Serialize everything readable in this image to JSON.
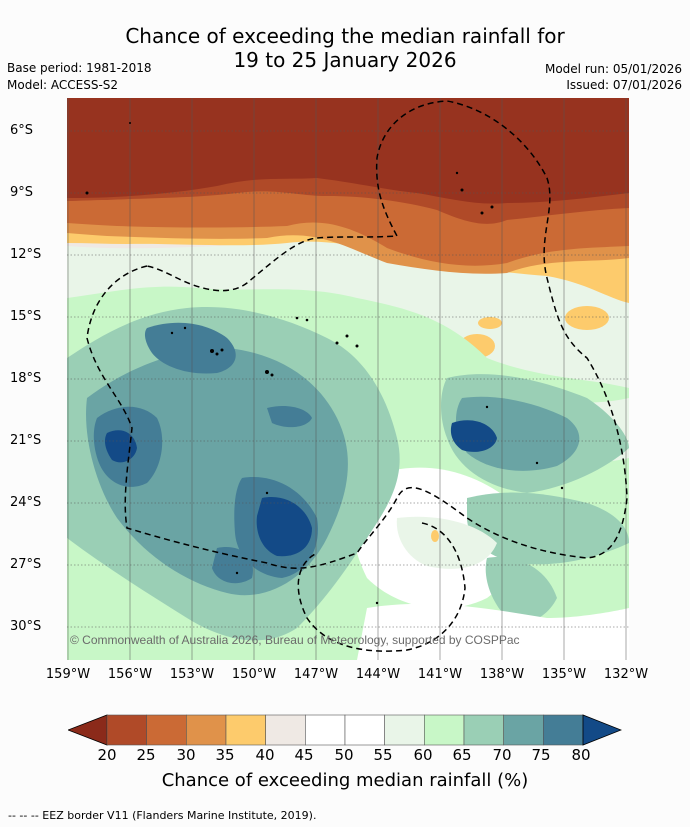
{
  "title": {
    "line1": "Chance of exceeding the median rainfall for",
    "line2": "19 to 25 January 2026"
  },
  "meta": {
    "base_period": "Base period: 1981-2018",
    "model": "Model: ACCESS-S2",
    "model_run": "Model run: 05/01/2026",
    "issued": "Issued: 07/01/2026"
  },
  "map": {
    "y_ticks": [
      "6°S",
      "9°S",
      "12°S",
      "15°S",
      "18°S",
      "21°S",
      "24°S",
      "27°S",
      "30°S"
    ],
    "x_ticks": [
      "159°W",
      "156°W",
      "153°W",
      "150°W",
      "147°W",
      "144°W",
      "141°W",
      "138°W",
      "135°W",
      "132°W"
    ],
    "copyright": "© Commonwealth of Australia 2026, Bureau of Meteorology, supported by COSPPac"
  },
  "colorbar": {
    "labels": [
      "20",
      "25",
      "30",
      "35",
      "40",
      "45",
      "50",
      "55",
      "60",
      "65",
      "70",
      "75",
      "80"
    ],
    "colors": [
      "#8b2a1a",
      "#b04a28",
      "#cb6a35",
      "#e0924a",
      "#fdcb6c",
      "#efe9e4",
      "#ffffff",
      "#ffffff",
      "#e9f5e8",
      "#c8f7c7",
      "#9acfb5",
      "#6aa4a4",
      "#447d96",
      "#134a87"
    ],
    "title": "Chance of exceeding median rainfall (%)"
  },
  "footer": "--  --  -- EEZ border V11 (Flanders Marine Institute, 2019)."
}
